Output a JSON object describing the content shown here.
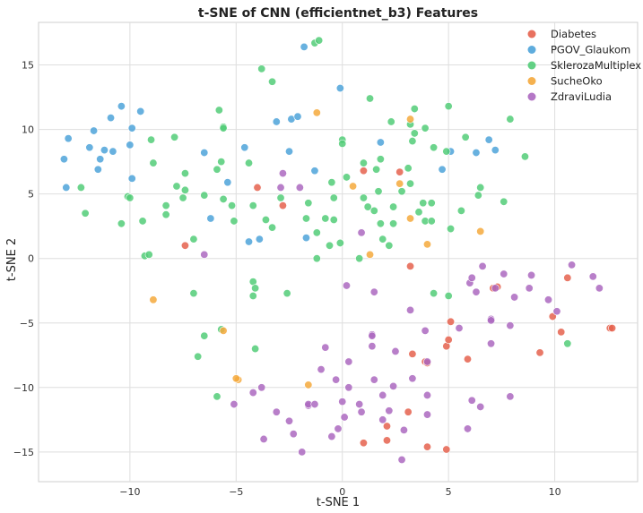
{
  "chart_data": {
    "type": "scatter",
    "title": "t-SNE of CNN (efficientnet_b3) Features",
    "xlabel": "t-SNE 1",
    "ylabel": "t-SNE 2",
    "xlim": [
      -14.3,
      13.9
    ],
    "ylim": [
      -17.3,
      18.3
    ],
    "xticks": [
      -10,
      -5,
      0,
      5,
      10
    ],
    "yticks": [
      -15,
      -10,
      -5,
      0,
      5,
      10,
      15
    ],
    "grid": true,
    "legend_position": "top-right",
    "series": [
      {
        "name": "Diabetes",
        "color": "#e5624e",
        "points": [
          [
            -7.4,
            1.0
          ],
          [
            -4.0,
            5.5
          ],
          [
            -2.8,
            4.1
          ],
          [
            1.0,
            6.8
          ],
          [
            2.7,
            6.7
          ],
          [
            3.2,
            -0.6
          ],
          [
            5.1,
            -4.9
          ],
          [
            4.9,
            -6.8
          ],
          [
            5.0,
            -6.3
          ],
          [
            5.9,
            -7.8
          ],
          [
            3.3,
            -7.4
          ],
          [
            3.9,
            -8.0
          ],
          [
            4.0,
            -8.1
          ],
          [
            3.1,
            -11.9
          ],
          [
            2.1,
            -13.0
          ],
          [
            2.1,
            -14.1
          ],
          [
            1.0,
            -14.3
          ],
          [
            4.0,
            -14.6
          ],
          [
            4.9,
            -14.8
          ],
          [
            7.3,
            -2.2
          ],
          [
            7.1,
            -2.3
          ],
          [
            9.3,
            -7.3
          ],
          [
            9.9,
            -4.5
          ],
          [
            10.3,
            -5.7
          ],
          [
            10.6,
            -1.5
          ],
          [
            12.6,
            -5.4
          ],
          [
            12.7,
            -5.4
          ]
        ]
      },
      {
        "name": "PGOV_Glaukom",
        "color": "#4da3d9",
        "points": [
          [
            -13.1,
            7.7
          ],
          [
            -12.9,
            9.3
          ],
          [
            -13.0,
            5.5
          ],
          [
            -11.9,
            8.6
          ],
          [
            -11.7,
            9.9
          ],
          [
            -11.5,
            6.9
          ],
          [
            -11.4,
            7.7
          ],
          [
            -11.2,
            8.4
          ],
          [
            -10.9,
            10.9
          ],
          [
            -10.8,
            8.3
          ],
          [
            -10.4,
            11.8
          ],
          [
            -9.9,
            10.1
          ],
          [
            -10.0,
            8.8
          ],
          [
            -9.9,
            6.2
          ],
          [
            -9.5,
            11.4
          ],
          [
            -6.5,
            8.2
          ],
          [
            -6.2,
            3.1
          ],
          [
            -5.4,
            5.9
          ],
          [
            -4.6,
            8.6
          ],
          [
            -4.4,
            1.3
          ],
          [
            -3.9,
            1.5
          ],
          [
            -3.1,
            10.6
          ],
          [
            -2.5,
            8.3
          ],
          [
            -2.4,
            10.8
          ],
          [
            -2.1,
            11.0
          ],
          [
            -1.8,
            16.4
          ],
          [
            -1.7,
            1.6
          ],
          [
            -1.3,
            6.8
          ],
          [
            -0.1,
            13.2
          ],
          [
            1.8,
            9.0
          ],
          [
            4.7,
            6.9
          ],
          [
            5.1,
            8.3
          ],
          [
            6.3,
            8.2
          ],
          [
            6.9,
            9.2
          ],
          [
            7.2,
            8.4
          ]
        ]
      },
      {
        "name": "SklerozaMultiplex",
        "color": "#52cc78",
        "points": [
          [
            -12.3,
            5.5
          ],
          [
            -12.1,
            3.5
          ],
          [
            -10.1,
            4.8
          ],
          [
            -10.0,
            4.7
          ],
          [
            -10.4,
            2.7
          ],
          [
            -9.4,
            2.9
          ],
          [
            -9.3,
            0.2
          ],
          [
            -9.1,
            0.3
          ],
          [
            -9.0,
            9.2
          ],
          [
            -8.9,
            7.4
          ],
          [
            -8.3,
            4.1
          ],
          [
            -8.3,
            3.4
          ],
          [
            -7.9,
            9.4
          ],
          [
            -7.8,
            5.6
          ],
          [
            -7.5,
            4.7
          ],
          [
            -7.4,
            5.3
          ],
          [
            -7.4,
            6.6
          ],
          [
            -7.0,
            1.5
          ],
          [
            -7.0,
            -2.7
          ],
          [
            -6.8,
            -7.6
          ],
          [
            -6.5,
            -6.0
          ],
          [
            -6.5,
            4.9
          ],
          [
            -5.9,
            6.9
          ],
          [
            -5.8,
            11.5
          ],
          [
            -5.7,
            7.5
          ],
          [
            -5.6,
            10.2
          ],
          [
            -5.6,
            10.1
          ],
          [
            -5.6,
            4.6
          ],
          [
            -5.7,
            -5.5
          ],
          [
            -5.9,
            -10.7
          ],
          [
            -5.2,
            4.1
          ],
          [
            -5.1,
            2.9
          ],
          [
            -4.4,
            7.4
          ],
          [
            -4.2,
            4.1
          ],
          [
            -4.2,
            -1.8
          ],
          [
            -4.1,
            -2.3
          ],
          [
            -4.2,
            -2.9
          ],
          [
            -4.1,
            -7.0
          ],
          [
            -3.8,
            14.7
          ],
          [
            -3.6,
            3.0
          ],
          [
            -3.3,
            2.4
          ],
          [
            -3.3,
            13.7
          ],
          [
            -2.9,
            4.7
          ],
          [
            -2.6,
            -2.7
          ],
          [
            -1.7,
            3.1
          ],
          [
            -1.6,
            4.3
          ],
          [
            -1.3,
            16.7
          ],
          [
            -1.1,
            16.9
          ],
          [
            -1.2,
            2.0
          ],
          [
            -1.2,
            0.0
          ],
          [
            -0.8,
            3.1
          ],
          [
            -0.6,
            1.0
          ],
          [
            -0.5,
            5.9
          ],
          [
            -0.4,
            4.7
          ],
          [
            -0.4,
            3.0
          ],
          [
            -0.1,
            1.2
          ],
          [
            0.0,
            9.2
          ],
          [
            0.0,
            8.9
          ],
          [
            0.2,
            6.3
          ],
          [
            0.8,
            0.0
          ],
          [
            1.0,
            7.4
          ],
          [
            1.0,
            4.7
          ],
          [
            1.2,
            4.0
          ],
          [
            1.3,
            12.4
          ],
          [
            1.5,
            3.7
          ],
          [
            1.6,
            6.9
          ],
          [
            1.7,
            5.2
          ],
          [
            1.8,
            2.7
          ],
          [
            1.8,
            7.7
          ],
          [
            1.9,
            1.5
          ],
          [
            2.2,
            1.0
          ],
          [
            2.3,
            10.6
          ],
          [
            2.4,
            4.0
          ],
          [
            2.4,
            2.7
          ],
          [
            2.8,
            5.2
          ],
          [
            3.2,
            10.4
          ],
          [
            3.1,
            7.0
          ],
          [
            3.2,
            5.8
          ],
          [
            3.3,
            9.1
          ],
          [
            3.4,
            11.6
          ],
          [
            3.4,
            9.7
          ],
          [
            3.6,
            3.6
          ],
          [
            3.8,
            4.3
          ],
          [
            3.9,
            2.9
          ],
          [
            3.9,
            10.1
          ],
          [
            4.2,
            4.3
          ],
          [
            4.2,
            2.9
          ],
          [
            4.3,
            8.6
          ],
          [
            4.3,
            -2.7
          ],
          [
            4.9,
            8.3
          ],
          [
            5.0,
            11.8
          ],
          [
            5.0,
            -2.9
          ],
          [
            5.1,
            2.3
          ],
          [
            5.6,
            3.7
          ],
          [
            5.8,
            9.4
          ],
          [
            6.4,
            4.9
          ],
          [
            6.5,
            5.5
          ],
          [
            7.6,
            4.4
          ],
          [
            7.9,
            10.8
          ],
          [
            8.6,
            7.9
          ],
          [
            10.6,
            -6.6
          ]
        ]
      },
      {
        "name": "SucheOko",
        "color": "#f4a93c",
        "points": [
          [
            -8.9,
            -3.2
          ],
          [
            -5.6,
            -5.6
          ],
          [
            -4.9,
            -9.4
          ],
          [
            -5.0,
            -9.3
          ],
          [
            -1.6,
            -9.8
          ],
          [
            -1.2,
            11.3
          ],
          [
            0.5,
            5.6
          ],
          [
            1.3,
            0.3
          ],
          [
            2.7,
            5.8
          ],
          [
            3.2,
            10.8
          ],
          [
            3.2,
            3.1
          ],
          [
            4.0,
            1.1
          ],
          [
            6.5,
            2.1
          ]
        ]
      },
      {
        "name": "ZdraviLudia",
        "color": "#ac68c0",
        "points": [
          [
            -6.5,
            0.3
          ],
          [
            -5.1,
            -11.3
          ],
          [
            -4.2,
            -10.4
          ],
          [
            -3.8,
            -10.0
          ],
          [
            -3.7,
            -14.0
          ],
          [
            -3.1,
            -11.9
          ],
          [
            -2.5,
            -12.6
          ],
          [
            -2.3,
            -13.6
          ],
          [
            -2.8,
            6.6
          ],
          [
            -2.9,
            5.5
          ],
          [
            -2.0,
            5.5
          ],
          [
            -1.9,
            -15.0
          ],
          [
            -1.6,
            -11.4
          ],
          [
            -1.6,
            -11.3
          ],
          [
            -1.3,
            -11.3
          ],
          [
            -1.0,
            -8.6
          ],
          [
            -0.8,
            -6.9
          ],
          [
            -0.5,
            -13.8
          ],
          [
            -0.3,
            -9.4
          ],
          [
            -0.2,
            -13.2
          ],
          [
            0.0,
            -11.1
          ],
          [
            0.1,
            -12.3
          ],
          [
            0.2,
            -2.1
          ],
          [
            0.3,
            -10.0
          ],
          [
            0.3,
            -8.0
          ],
          [
            0.8,
            -11.3
          ],
          [
            0.9,
            -11.9
          ],
          [
            0.9,
            2.0
          ],
          [
            1.4,
            -5.9
          ],
          [
            1.4,
            -6.0
          ],
          [
            1.4,
            -6.8
          ],
          [
            1.5,
            -9.4
          ],
          [
            1.5,
            -2.6
          ],
          [
            1.9,
            -12.5
          ],
          [
            1.9,
            -10.6
          ],
          [
            2.2,
            -11.8
          ],
          [
            2.4,
            -9.9
          ],
          [
            2.5,
            -7.2
          ],
          [
            2.9,
            -13.3
          ],
          [
            2.8,
            -15.6
          ],
          [
            3.2,
            -4.0
          ],
          [
            3.3,
            -9.3
          ],
          [
            3.9,
            -5.6
          ],
          [
            4.0,
            -8.0
          ],
          [
            4.0,
            -10.6
          ],
          [
            4.0,
            -12.1
          ],
          [
            5.5,
            -5.4
          ],
          [
            5.9,
            -13.2
          ],
          [
            6.0,
            -1.9
          ],
          [
            6.1,
            -11.0
          ],
          [
            6.1,
            -1.5
          ],
          [
            6.3,
            -2.6
          ],
          [
            6.5,
            -11.5
          ],
          [
            6.6,
            -0.6
          ],
          [
            7.0,
            -4.7
          ],
          [
            7.0,
            -4.8
          ],
          [
            7.0,
            -6.6
          ],
          [
            7.2,
            -2.3
          ],
          [
            7.6,
            -1.2
          ],
          [
            7.9,
            -5.2
          ],
          [
            7.9,
            -10.7
          ],
          [
            8.1,
            -3.0
          ],
          [
            8.8,
            -2.3
          ],
          [
            8.9,
            -1.3
          ],
          [
            9.7,
            -3.2
          ],
          [
            10.1,
            -4.1
          ],
          [
            10.8,
            -0.5
          ],
          [
            11.8,
            -1.4
          ],
          [
            12.1,
            -2.3
          ]
        ]
      }
    ]
  }
}
